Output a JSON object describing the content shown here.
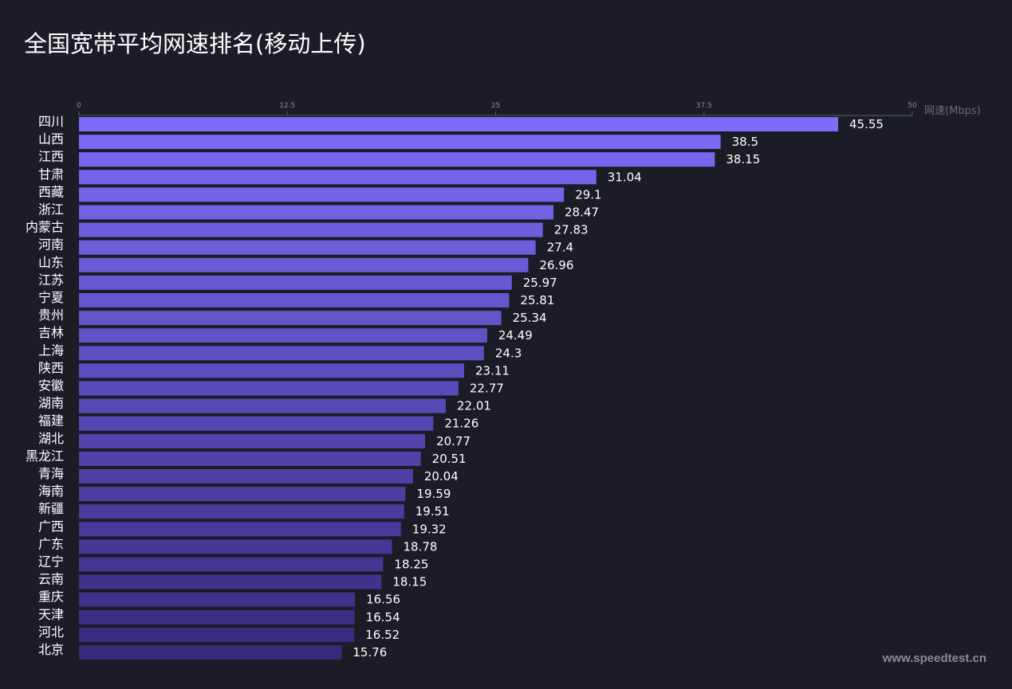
{
  "chart_data": {
    "type": "bar",
    "orientation": "horizontal",
    "title": "全国宽带平均网速排名(移动上传)",
    "xlabel": "网速(Mbps)",
    "ylabel": "",
    "xlim": [
      0,
      50
    ],
    "xticks": [
      "0",
      "12.5",
      "25",
      "37.5",
      "50"
    ],
    "categories": [
      "四川",
      "山西",
      "江西",
      "甘肃",
      "西藏",
      "浙江",
      "内蒙古",
      "河南",
      "山东",
      "江苏",
      "宁夏",
      "贵州",
      "吉林",
      "上海",
      "陕西",
      "安徽",
      "湖南",
      "福建",
      "湖北",
      "黑龙江",
      "青海",
      "海南",
      "新疆",
      "广西",
      "广东",
      "辽宁",
      "云南",
      "重庆",
      "天津",
      "河北",
      "北京"
    ],
    "values": [
      45.55,
      38.5,
      38.15,
      31.04,
      29.1,
      28.47,
      27.83,
      27.4,
      26.96,
      25.97,
      25.81,
      25.34,
      24.49,
      24.3,
      23.11,
      22.77,
      22.01,
      21.26,
      20.77,
      20.51,
      20.04,
      19.59,
      19.51,
      19.32,
      18.78,
      18.25,
      18.15,
      16.56,
      16.54,
      16.52,
      15.76
    ],
    "value_labels": [
      "45.55",
      "38.5",
      "38.15",
      "31.04",
      "29.1",
      "28.47",
      "27.83",
      "27.4",
      "26.96",
      "25.97",
      "25.81",
      "25.34",
      "24.49",
      "24.3",
      "23.11",
      "22.77",
      "22.01",
      "21.26",
      "20.77",
      "20.51",
      "20.04",
      "19.59",
      "19.51",
      "19.32",
      "18.78",
      "18.25",
      "18.15",
      "16.56",
      "16.54",
      "16.52",
      "15.76"
    ],
    "colors": {
      "top": "#7c6cf7",
      "bottom": "#372a7c",
      "background": "#1b1c26"
    },
    "grid": false,
    "legend": "none"
  },
  "watermark": "www.speedtest.cn"
}
